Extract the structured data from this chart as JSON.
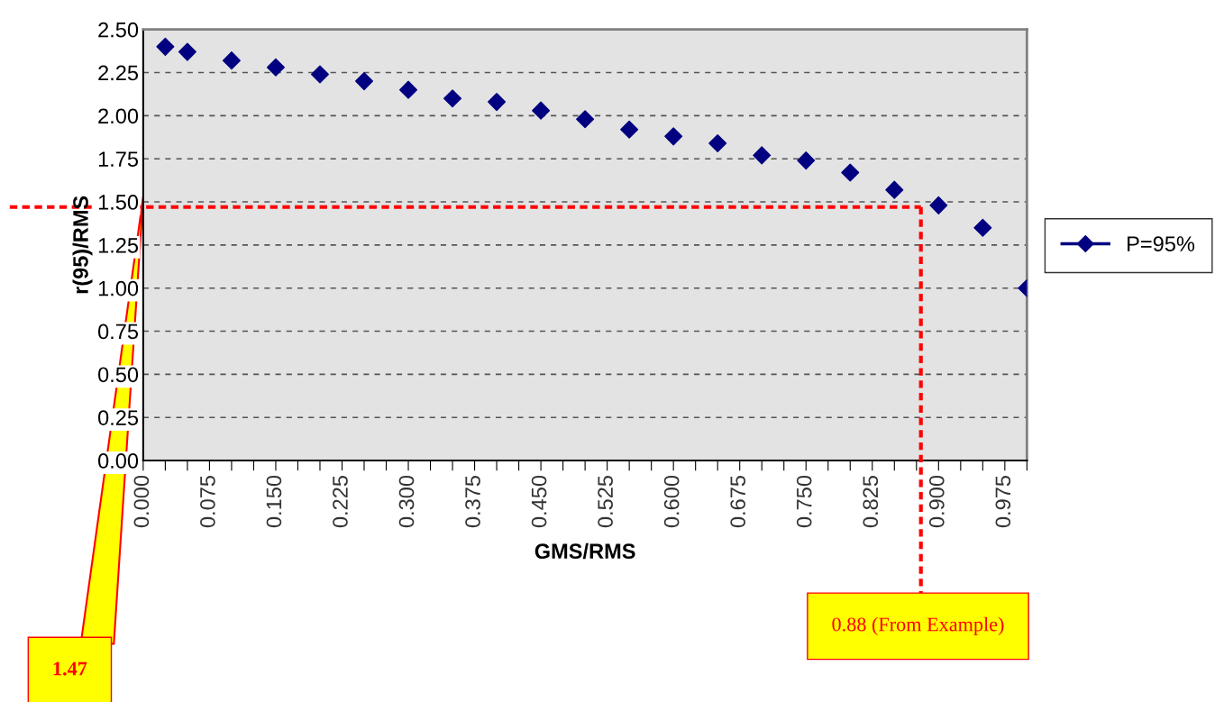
{
  "chart_data": {
    "type": "scatter",
    "xlabel": "GMS/RMS",
    "ylabel": "r(95)/RMS",
    "x": [
      0.025,
      0.05,
      0.1,
      0.15,
      0.2,
      0.25,
      0.3,
      0.35,
      0.4,
      0.45,
      0.5,
      0.55,
      0.6,
      0.65,
      0.7,
      0.75,
      0.8,
      0.85,
      0.9,
      0.95,
      1.0
    ],
    "series": [
      {
        "name": "P=95%",
        "color": "#000080",
        "values": [
          2.4,
          2.37,
          2.32,
          2.28,
          2.24,
          2.2,
          2.15,
          2.1,
          2.08,
          2.03,
          1.98,
          1.92,
          1.88,
          1.84,
          1.77,
          1.74,
          1.67,
          1.57,
          1.48,
          1.35,
          1.0
        ]
      }
    ],
    "xlim": [
      0,
      1
    ],
    "xticks": [
      {
        "value": 0,
        "label": "0.000"
      },
      {
        "value": 0.025,
        "label": null
      },
      {
        "value": 0.05,
        "label": null
      },
      {
        "value": 0.075,
        "label": "0.075"
      },
      {
        "value": 0.1,
        "label": null
      },
      {
        "value": 0.125,
        "label": null
      },
      {
        "value": 0.15,
        "label": "0.150"
      },
      {
        "value": 0.175,
        "label": null
      },
      {
        "value": 0.2,
        "label": null
      },
      {
        "value": 0.225,
        "label": "0.225"
      },
      {
        "value": 0.25,
        "label": null
      },
      {
        "value": 0.275,
        "label": null
      },
      {
        "value": 0.3,
        "label": "0.300"
      },
      {
        "value": 0.325,
        "label": null
      },
      {
        "value": 0.35,
        "label": null
      },
      {
        "value": 0.375,
        "label": "0.375"
      },
      {
        "value": 0.4,
        "label": null
      },
      {
        "value": 0.425,
        "label": null
      },
      {
        "value": 0.45,
        "label": "0.450"
      },
      {
        "value": 0.475,
        "label": null
      },
      {
        "value": 0.5,
        "label": null
      },
      {
        "value": 0.525,
        "label": "0.525"
      },
      {
        "value": 0.55,
        "label": null
      },
      {
        "value": 0.575,
        "label": null
      },
      {
        "value": 0.6,
        "label": "0.600"
      },
      {
        "value": 0.625,
        "label": null
      },
      {
        "value": 0.65,
        "label": null
      },
      {
        "value": 0.675,
        "label": "0.675"
      },
      {
        "value": 0.7,
        "label": null
      },
      {
        "value": 0.725,
        "label": null
      },
      {
        "value": 0.75,
        "label": "0.750"
      },
      {
        "value": 0.775,
        "label": null
      },
      {
        "value": 0.8,
        "label": null
      },
      {
        "value": 0.825,
        "label": "0.825"
      },
      {
        "value": 0.85,
        "label": null
      },
      {
        "value": 0.875,
        "label": null
      },
      {
        "value": 0.9,
        "label": "0.900"
      },
      {
        "value": 0.925,
        "label": null
      },
      {
        "value": 0.95,
        "label": null
      },
      {
        "value": 0.975,
        "label": "0.975"
      },
      {
        "value": 1.0,
        "label": null
      }
    ],
    "ylim": [
      0,
      2.5
    ],
    "yticks": [
      {
        "value": 0,
        "label": "0.00"
      },
      {
        "value": 0.25,
        "label": "0.25"
      },
      {
        "value": 0.5,
        "label": "0.50"
      },
      {
        "value": 0.75,
        "label": "0.75"
      },
      {
        "value": 1,
        "label": "1.00"
      },
      {
        "value": 1.25,
        "label": "1.25"
      },
      {
        "value": 1.5,
        "label": "1.50"
      },
      {
        "value": 1.75,
        "label": "1.75"
      },
      {
        "value": 2,
        "label": "2.00"
      },
      {
        "value": 2.25,
        "label": "2.25"
      },
      {
        "value": 2.5,
        "label": "2.50"
      }
    ],
    "grid": "y",
    "legend": "right",
    "marker": "diamond",
    "ref_lines": [
      {
        "axis": "y",
        "value": 1.47,
        "label": "1.47",
        "color": "#ff0000",
        "line_style": "dashed"
      },
      {
        "axis": "x",
        "value": 0.88,
        "label": "0.88 (From Example)",
        "color": "#ff0000",
        "line_style": "dashed"
      }
    ]
  }
}
